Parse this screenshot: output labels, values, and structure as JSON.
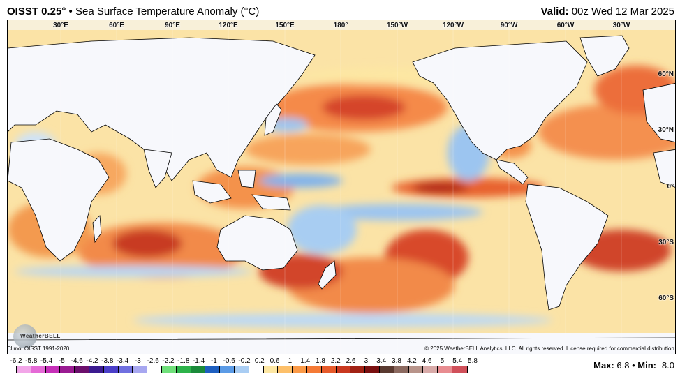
{
  "header": {
    "product": "OISST 0.25",
    "degree_mark": "°",
    "separator": "•",
    "title": "Sea Surface Temperature Anomaly (°C)",
    "valid_label": "Valid:",
    "valid_time": "00z Wed 12 Mar 2025"
  },
  "map": {
    "lon_labels": [
      "30°E",
      "60°E",
      "90°E",
      "120°E",
      "150°E",
      "180°",
      "150°W",
      "120°W",
      "90°W",
      "60°W",
      "30°W"
    ],
    "lat_labels": [
      "60°N",
      "30°N",
      "0°",
      "30°S",
      "60°S"
    ],
    "logo_text": "WeatherBELL"
  },
  "footer": {
    "climo": "Climo: OISST 1991-2020",
    "copyright": "© 2025 WeatherBELL Analytics, LLC. All rights reserved. License required for commercial distribution.",
    "max_label": "Max:",
    "max_value": "6.8",
    "min_label": "Min:",
    "min_value": "-8.0",
    "separator": "•"
  },
  "colorbar": {
    "ticks": [
      "-6.2",
      "-5.8",
      "-5.4",
      "-5",
      "-4.6",
      "-4.2",
      "-3.8",
      "-3.4",
      "-3",
      "-2.6",
      "-2.2",
      "-1.8",
      "-1.4",
      "-1",
      "-0.6",
      "-0.2",
      "0.2",
      "0.6",
      "1",
      "1.4",
      "1.8",
      "2.2",
      "2.6",
      "3",
      "3.4",
      "3.8",
      "4.2",
      "4.6",
      "5",
      "5.4",
      "5.8"
    ],
    "colors": [
      "#f2a6e8",
      "#e56ad6",
      "#c630b8",
      "#9a1b92",
      "#6b0f6c",
      "#3b1a8f",
      "#4b3fc9",
      "#7070e0",
      "#a7a7f0",
      "#ffffff",
      "#6fe07a",
      "#2db34a",
      "#1a8a3a",
      "#1e5fc0",
      "#5b9be6",
      "#a9cdf3",
      "#ffffff",
      "#fde7a3",
      "#fdc06a",
      "#fb9a47",
      "#f57a35",
      "#e65a2a",
      "#c9381f",
      "#a12214",
      "#7a1010",
      "#5a3a30",
      "#8c6a60",
      "#b8948a",
      "#d8aaa8",
      "#e88c90",
      "#d0505a"
    ]
  }
}
